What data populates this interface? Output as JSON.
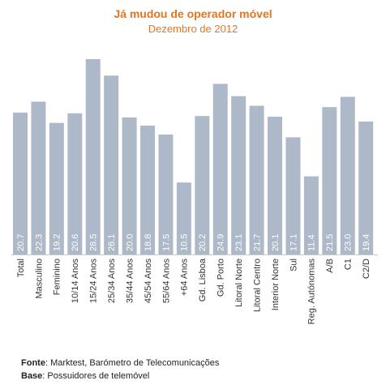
{
  "chart_data": {
    "type": "bar",
    "title": "Já mudou de operador móvel",
    "subtitle": "Dezembro de 2012",
    "categories": [
      "Total",
      "Masculino",
      "Feminino",
      "10/14 Anos",
      "15/24 Anos",
      "25/34 Anos",
      "35/44 Anos",
      "45/54 Anos",
      "55/64 Anos",
      "+64 Anos",
      "Gd. Lisboa",
      "Gd. Porto",
      "Litoral Norte",
      "Litoral Centro",
      "Interior Norte",
      "Sul",
      "Reg. Autónomas",
      "A/B",
      "C1",
      "C2/D"
    ],
    "values": [
      20.7,
      22.3,
      19.2,
      20.6,
      28.5,
      26.1,
      20.0,
      18.8,
      17.5,
      10.5,
      20.2,
      24.9,
      23.1,
      21.7,
      20.1,
      17.1,
      11.4,
      21.5,
      23.0,
      19.4
    ],
    "value_labels": [
      "20.7",
      "22.3",
      "19.2",
      "20.6",
      "28.5",
      "26.1",
      "20.0",
      "18.8",
      "17.5",
      "10.5",
      "20.2",
      "24.9",
      "23.1",
      "21.7",
      "20.1",
      "17.1",
      "11.4",
      "21.5",
      "23.0",
      "19.4"
    ],
    "ylim": [
      0,
      28.5
    ],
    "bar_color": "#adb9c9",
    "label_color": "#ffffff",
    "title_color": "#e8741c",
    "grid": false,
    "legend": false
  },
  "footer": {
    "source_label": "Fonte",
    "source_text": ": Marktest, Barómetro de Telecomunicações",
    "base_label": "Base",
    "base_text": ": Possuidores de telemóvel"
  }
}
